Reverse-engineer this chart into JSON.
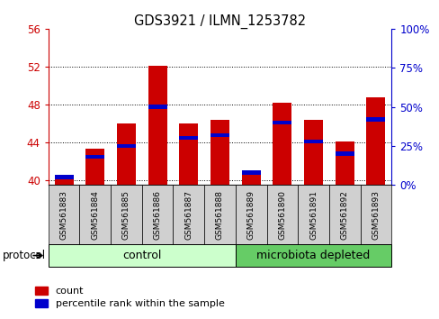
{
  "title": "GDS3921 / ILMN_1253782",
  "samples": [
    "GSM561883",
    "GSM561884",
    "GSM561885",
    "GSM561886",
    "GSM561887",
    "GSM561888",
    "GSM561889",
    "GSM561890",
    "GSM561891",
    "GSM561892",
    "GSM561893"
  ],
  "count_values": [
    40.3,
    43.3,
    46.0,
    52.1,
    46.0,
    46.4,
    41.0,
    48.2,
    46.4,
    44.1,
    48.8
  ],
  "percentile_values": [
    5,
    18,
    25,
    50,
    30,
    32,
    8,
    40,
    28,
    20,
    42
  ],
  "count_color": "#cc0000",
  "percentile_color": "#0000cc",
  "left_ylim": [
    39.5,
    56
  ],
  "right_ylim": [
    0,
    100
  ],
  "left_yticks": [
    40,
    44,
    48,
    52,
    56
  ],
  "right_yticks": [
    0,
    25,
    50,
    75,
    100
  ],
  "grid_values": [
    40,
    44,
    48,
    52
  ],
  "n_control": 6,
  "n_microbiota": 5,
  "control_color": "#ccffcc",
  "microbiota_color": "#66cc66",
  "protocol_label": "protocol",
  "control_label": "control",
  "microbiota_label": "microbiota depleted",
  "count_label": "count",
  "percentile_label": "percentile rank within the sample",
  "bar_width": 0.6,
  "left_yaxis_color": "#cc0000",
  "right_yaxis_color": "#0000cc",
  "tick_box_color": "#d0d0d0",
  "background_color": "#ffffff"
}
